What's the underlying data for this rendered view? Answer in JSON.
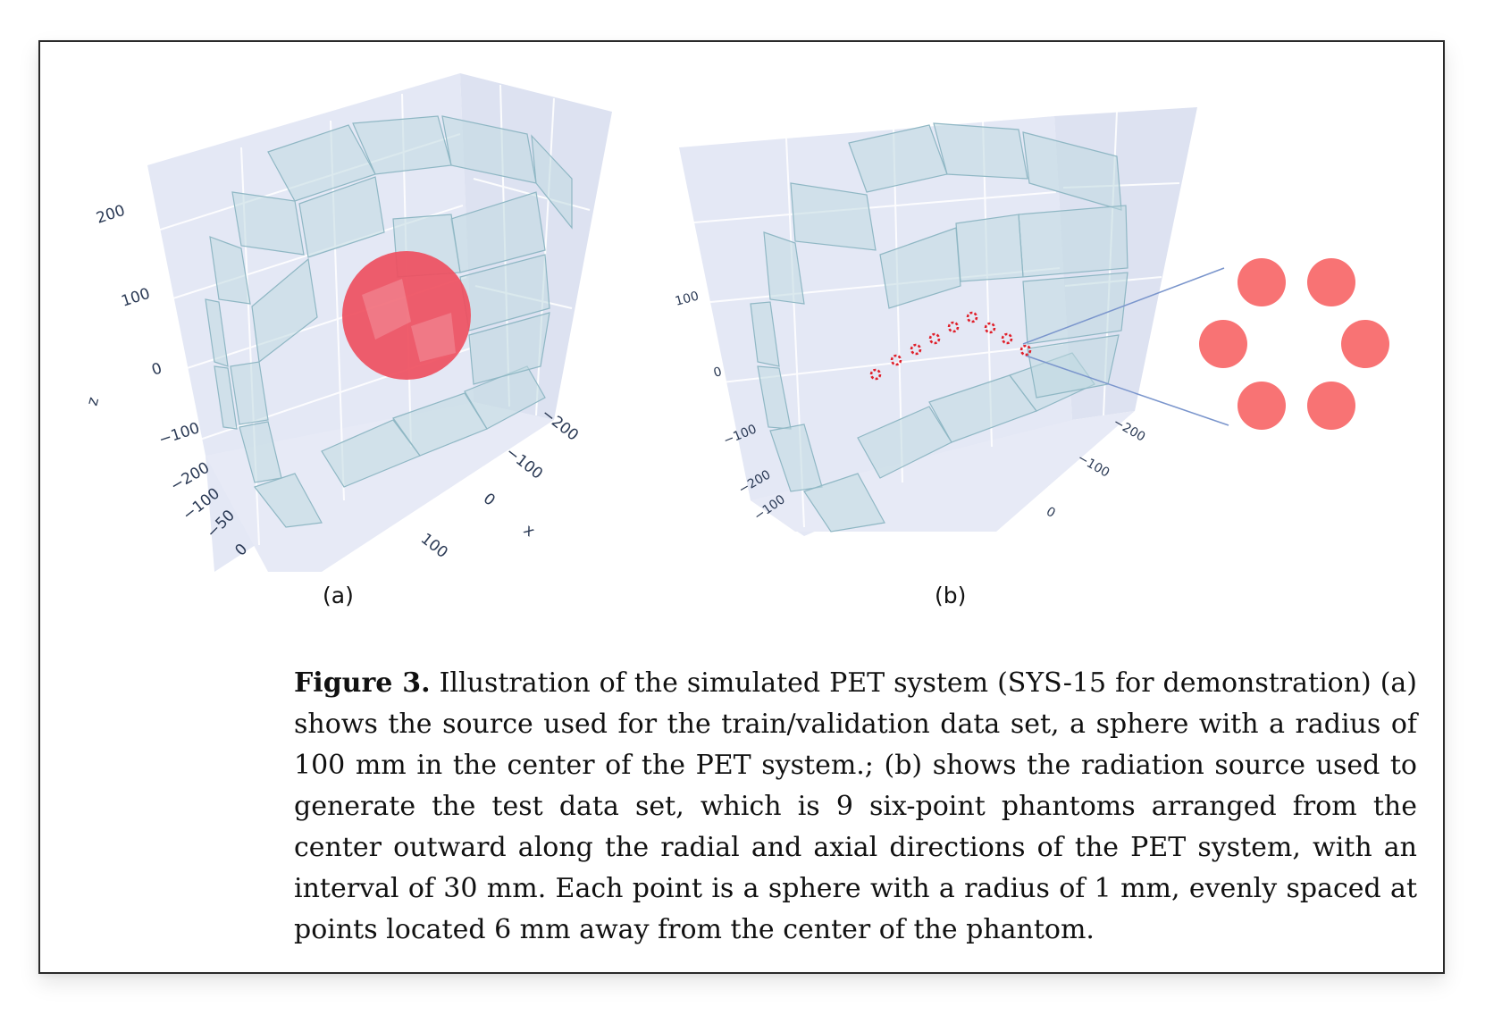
{
  "figure": {
    "panel_a": {
      "label": "(a)",
      "z_axis_title": "z",
      "x_axis_title": "x",
      "z_ticks": [
        "200",
        "100",
        "0",
        "−100",
        "−200"
      ],
      "y_ticks": [
        "−100",
        "−50",
        "0"
      ],
      "x_ticks": [
        "−200",
        "−100",
        "0",
        "100"
      ],
      "source": "sphere",
      "source_color": "#ee4f5f"
    },
    "panel_b": {
      "label": "(b)",
      "z_ticks": [
        "100",
        "0",
        "−100",
        "−200"
      ],
      "y_ticks": [
        "−100"
      ],
      "x_ticks": [
        "−200",
        "−100",
        "0"
      ],
      "phantom_count": 9,
      "points_per_phantom": 6,
      "point_color": "#f87374"
    },
    "colors": {
      "pane": "#e4e8f5",
      "crystal_fill": "#bfd8e0",
      "crystal_stroke": "#8fb7c4",
      "zoom_line": "#7a95cc"
    }
  },
  "caption": {
    "label": "Figure 3.",
    "text": "Illustration of the simulated PET system (SYS-15 for demonstration) (a) shows the source used for the train/validation data set, a sphere with a radius of 100 mm in the center of the PET system.; (b) shows the radiation source used to generate the test data set, which is 9 six-point phantoms arranged from the center outward along the radial and axial directions of the PET system, with an interval of 30 mm.  Each point is a sphere with a radius of 1 mm, evenly spaced at points located 6 mm away from the center of the phantom."
  }
}
